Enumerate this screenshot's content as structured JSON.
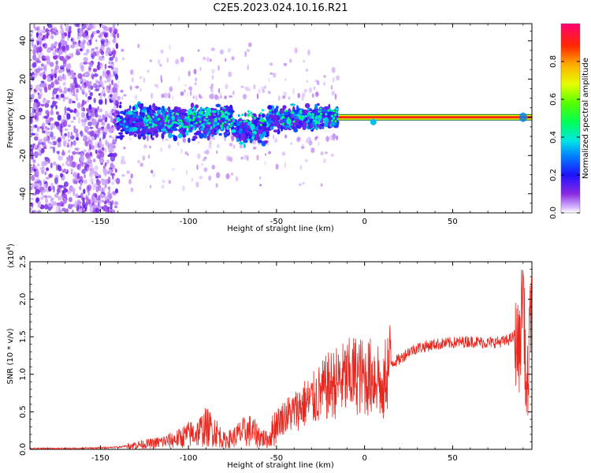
{
  "title": "C2E5.2023.024.10.16.R21",
  "colors": {
    "snr_line": "#e8271f",
    "background": "#ffffff",
    "sparse_signal": "#7a2bf0",
    "trace_outline": "#1b9c62"
  },
  "chart_data": [
    {
      "type": "heatmap",
      "xlabel": "Height of straight line (km)",
      "ylabel": "Frequency (Hz)",
      "xlim": [
        -190,
        95
      ],
      "ylim": [
        -50,
        49
      ],
      "xticks": [
        -150,
        -100,
        -50,
        0,
        50
      ],
      "xtick_labels": [
        "-150",
        "-100",
        "-50",
        "0",
        "50"
      ],
      "yticks": [
        -40,
        -20,
        0,
        20,
        40
      ],
      "ytick_labels": [
        "-40",
        "-20",
        "0",
        "20",
        "40"
      ],
      "colorbar": {
        "label": "Normalized spectral amplitude",
        "range": [
          0,
          1
        ],
        "ticks": [
          0.0,
          0.2,
          0.4,
          0.6,
          0.8
        ],
        "tick_labels": [
          "0.0",
          "0.2",
          "0.4",
          "0.6",
          "0.8"
        ],
        "colormap": "rainbow"
      },
      "features": [
        {
          "region": "noise",
          "x_range": [
            -190,
            -140
          ],
          "freq_range": [
            -50,
            49
          ],
          "amplitude": 0.1
        },
        {
          "region": "scattered_signal",
          "x_range": [
            -140,
            -15
          ],
          "freq_range": [
            -13,
            10
          ],
          "amplitude": 0.3
        },
        {
          "region": "carrier_line",
          "x_range": [
            -15,
            95
          ],
          "freq_range": [
            -1,
            1
          ],
          "amplitude": 0.9
        }
      ]
    },
    {
      "type": "line",
      "xlabel": "Height of straight line (km)",
      "ylabel": "SNR (10 * v/v)",
      "scale_label": "(x10",
      "scale_exp": "4",
      "scale_close": ")",
      "xlim": [
        -190,
        95
      ],
      "ylim": [
        0,
        2.5
      ],
      "xticks": [
        -150,
        -100,
        -50,
        0,
        50
      ],
      "xtick_labels": [
        "-150",
        "-100",
        "-50",
        "0",
        "50"
      ],
      "yticks": [
        0.0,
        0.5,
        1.0,
        1.5,
        2.0,
        2.5
      ],
      "ytick_labels": [
        "0.0",
        "0.5",
        "1.0",
        "1.5",
        "2.0",
        "2.5"
      ],
      "series": [
        {
          "x": [
            -190,
            -170,
            -150,
            -140,
            -130,
            -120,
            -110,
            -105,
            -100,
            -95,
            -90,
            -85,
            -80,
            -75,
            -70,
            -65,
            -60,
            -55,
            -50,
            -45,
            -40,
            -35,
            -30,
            -25,
            -20,
            -15,
            -10,
            -5,
            0,
            5,
            8,
            10,
            12,
            15,
            20,
            25,
            30,
            40,
            50,
            60,
            70,
            80,
            85,
            88,
            90,
            92,
            95
          ],
          "y": [
            0.01,
            0.01,
            0.02,
            0.03,
            0.06,
            0.08,
            0.12,
            0.15,
            0.2,
            0.22,
            0.3,
            0.25,
            0.12,
            0.15,
            0.22,
            0.25,
            0.18,
            0.12,
            0.35,
            0.45,
            0.5,
            0.6,
            0.65,
            0.75,
            0.85,
            0.9,
            0.95,
            1.0,
            0.95,
            0.98,
            1.0,
            0.6,
            1.05,
            1.15,
            1.2,
            1.3,
            1.35,
            1.4,
            1.42,
            1.44,
            1.42,
            1.44,
            1.5,
            1.3,
            2.3,
            0.5,
            2.2
          ]
        }
      ]
    }
  ]
}
